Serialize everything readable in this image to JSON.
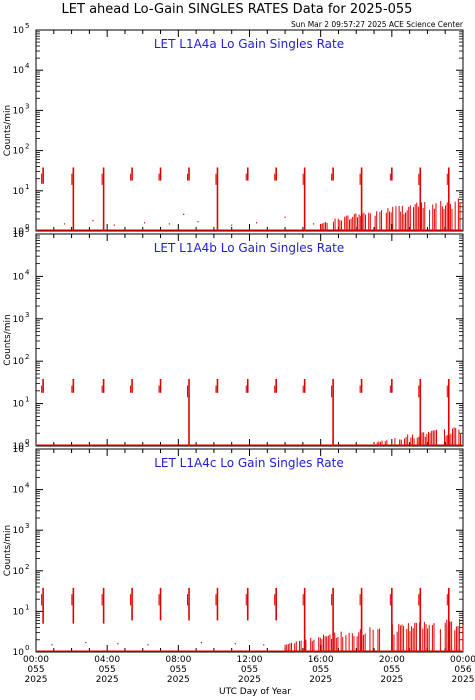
{
  "header": {
    "title": "LET ahead Lo-Gain SINGLES RATES Data for 2025-055",
    "timestamp": "Sun Mar  2 09:57:27 2025 ACE Science Center"
  },
  "chart_data": {
    "type": "line",
    "scale": "log",
    "series_color": "#e00000",
    "title_color": "#1f1fd6",
    "xlabel": "UTC Day of Year",
    "ylabel": "Counts/min",
    "xlim_hours": [
      0,
      24
    ],
    "ylim": [
      1,
      100000
    ],
    "x_ticks": [
      {
        "hour": 0,
        "time": "00:00",
        "day": "055",
        "year": "2025"
      },
      {
        "hour": 4,
        "time": "04:00",
        "day": "055",
        "year": "2025"
      },
      {
        "hour": 8,
        "time": "08:00",
        "day": "055",
        "year": "2025"
      },
      {
        "hour": 12,
        "time": "12:00",
        "day": "055",
        "year": "2025"
      },
      {
        "hour": 16,
        "time": "16:00",
        "day": "055",
        "year": "2025"
      },
      {
        "hour": 20,
        "time": "20:00",
        "day": "055",
        "year": "2025"
      },
      {
        "hour": 24,
        "time": "00:00",
        "day": "056",
        "year": "2025"
      }
    ],
    "y_ticks": [
      {
        "base": "10",
        "exp": "0"
      },
      {
        "base": "10",
        "exp": "1"
      },
      {
        "base": "10",
        "exp": "2"
      },
      {
        "base": "10",
        "exp": "3"
      },
      {
        "base": "10",
        "exp": "4"
      },
      {
        "base": "10",
        "exp": "5"
      }
    ],
    "panels": [
      {
        "title": "LET L1A4a Lo Gain Singles Rate",
        "spikes": [
          {
            "x": 0.4,
            "y0": 15,
            "y1": 38
          },
          {
            "x": 2.1,
            "y0": 1,
            "y1": 38
          },
          {
            "x": 3.8,
            "y0": 1,
            "y1": 38
          },
          {
            "x": 5.4,
            "y0": 18,
            "y1": 38
          },
          {
            "x": 7.0,
            "y0": 18,
            "y1": 38
          },
          {
            "x": 8.6,
            "y0": 18,
            "y1": 38
          },
          {
            "x": 10.2,
            "y0": 1,
            "y1": 38
          },
          {
            "x": 11.9,
            "y0": 18,
            "y1": 38
          },
          {
            "x": 13.5,
            "y0": 18,
            "y1": 38
          },
          {
            "x": 15.1,
            "y0": 1,
            "y1": 38
          },
          {
            "x": 16.7,
            "y0": 18,
            "y1": 38
          },
          {
            "x": 18.3,
            "y0": 1,
            "y1": 38
          },
          {
            "x": 20.0,
            "y0": 18,
            "y1": 38
          },
          {
            "x": 21.6,
            "y0": 1,
            "y1": 38
          },
          {
            "x": 23.2,
            "y0": 1,
            "y1": 38
          }
        ],
        "noise": {
          "start": 16.0,
          "ramp_end": 24.0,
          "min_peak": 1.5,
          "max_peak": 7.0
        },
        "baseline_dots": [
          {
            "x": 1.6,
            "y": 1.5
          },
          {
            "x": 3.2,
            "y": 1.8
          },
          {
            "x": 4.4,
            "y": 1.4
          },
          {
            "x": 6.1,
            "y": 1.6
          },
          {
            "x": 7.5,
            "y": 1.5
          },
          {
            "x": 8.3,
            "y": 2.6
          },
          {
            "x": 9.1,
            "y": 1.7
          },
          {
            "x": 11.0,
            "y": 1.4
          },
          {
            "x": 12.4,
            "y": 1.6
          },
          {
            "x": 14.0,
            "y": 2.2
          },
          {
            "x": 15.6,
            "y": 1.5
          }
        ]
      },
      {
        "title": "LET L1A4b Lo Gain Singles Rate",
        "spikes": [
          {
            "x": 0.4,
            "y0": 18,
            "y1": 38
          },
          {
            "x": 2.1,
            "y0": 18,
            "y1": 38
          },
          {
            "x": 3.8,
            "y0": 18,
            "y1": 38
          },
          {
            "x": 5.4,
            "y0": 18,
            "y1": 38
          },
          {
            "x": 7.0,
            "y0": 18,
            "y1": 38
          },
          {
            "x": 8.6,
            "y0": 1,
            "y1": 38
          },
          {
            "x": 10.2,
            "y0": 18,
            "y1": 38
          },
          {
            "x": 11.9,
            "y0": 18,
            "y1": 38
          },
          {
            "x": 13.5,
            "y0": 18,
            "y1": 38
          },
          {
            "x": 15.1,
            "y0": 18,
            "y1": 38
          },
          {
            "x": 16.7,
            "y0": 1,
            "y1": 38
          },
          {
            "x": 18.3,
            "y0": 18,
            "y1": 38
          },
          {
            "x": 20.0,
            "y0": 18,
            "y1": 38
          },
          {
            "x": 21.6,
            "y0": 1,
            "y1": 38
          },
          {
            "x": 23.2,
            "y0": 1,
            "y1": 38
          }
        ],
        "noise": {
          "start": 19.0,
          "ramp_end": 24.0,
          "min_peak": 1.2,
          "max_peak": 3.0
        },
        "baseline_dots": []
      },
      {
        "title": "LET L1A4c Lo Gain Singles Rate",
        "spikes": [
          {
            "x": 0.4,
            "y0": 5,
            "y1": 38
          },
          {
            "x": 2.1,
            "y0": 5,
            "y1": 38
          },
          {
            "x": 3.8,
            "y0": 5,
            "y1": 38
          },
          {
            "x": 5.4,
            "y0": 6,
            "y1": 38
          },
          {
            "x": 7.0,
            "y0": 6,
            "y1": 38
          },
          {
            "x": 8.6,
            "y0": 6,
            "y1": 38
          },
          {
            "x": 10.2,
            "y0": 6,
            "y1": 38
          },
          {
            "x": 11.9,
            "y0": 6,
            "y1": 38
          },
          {
            "x": 13.5,
            "y0": 6,
            "y1": 38
          },
          {
            "x": 15.1,
            "y0": 1,
            "y1": 38
          },
          {
            "x": 16.7,
            "y0": 1,
            "y1": 38
          },
          {
            "x": 18.3,
            "y0": 1,
            "y1": 38
          },
          {
            "x": 20.0,
            "y0": 1,
            "y1": 38
          },
          {
            "x": 21.6,
            "y0": 1,
            "y1": 38
          },
          {
            "x": 23.2,
            "y0": 1,
            "y1": 38
          }
        ],
        "noise": {
          "start": 14.0,
          "ramp_end": 24.0,
          "min_peak": 1.5,
          "max_peak": 7.0
        },
        "baseline_dots": [
          {
            "x": 0.9,
            "y": 1.5
          },
          {
            "x": 2.8,
            "y": 1.7
          },
          {
            "x": 4.6,
            "y": 1.6
          },
          {
            "x": 6.3,
            "y": 1.5
          },
          {
            "x": 9.3,
            "y": 1.7
          },
          {
            "x": 11.2,
            "y": 1.6
          },
          {
            "x": 12.8,
            "y": 1.5
          }
        ]
      }
    ]
  }
}
